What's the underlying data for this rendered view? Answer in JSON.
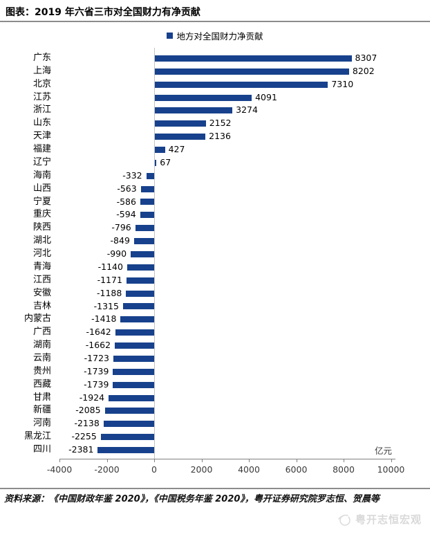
{
  "title": "图表：2019 年六省三市对全国财力有净贡献",
  "legend": {
    "label": "地方对全国财力净贡献",
    "color": "#17418C"
  },
  "chart_data": {
    "type": "bar",
    "orientation": "horizontal",
    "title": "图表：2019 年六省三市对全国财力有净贡献",
    "legend_entries": [
      "地方对全国财力净贡献"
    ],
    "legend_position": "top-center",
    "unit_label": "亿元",
    "bar_color": "#17418C",
    "grid": false,
    "xlim": [
      -4000,
      10000
    ],
    "x_ticks": [
      -4000,
      -2000,
      0,
      2000,
      4000,
      6000,
      8000,
      10000
    ],
    "categories": [
      "广东",
      "上海",
      "北京",
      "江苏",
      "浙江",
      "山东",
      "天津",
      "福建",
      "辽宁",
      "海南",
      "山西",
      "宁夏",
      "重庆",
      "陕西",
      "湖北",
      "河北",
      "青海",
      "江西",
      "安徽",
      "吉林",
      "内蒙古",
      "广西",
      "湖南",
      "云南",
      "贵州",
      "西藏",
      "甘肃",
      "新疆",
      "河南",
      "黑龙江",
      "四川"
    ],
    "values": [
      8307,
      8202,
      7310,
      4091,
      3274,
      2152,
      2136,
      427,
      67,
      -332,
      -563,
      -586,
      -594,
      -796,
      -849,
      -990,
      -1140,
      -1171,
      -1188,
      -1315,
      -1418,
      -1642,
      -1662,
      -1723,
      -1739,
      -1739,
      -1924,
      -2085,
      -2138,
      -2255,
      -2381
    ]
  },
  "footer": {
    "source": "资料来源：《中国财政年鉴 2020》，《中国税务年鉴 2020》，粤开证券研究院罗志恒、贺晨等",
    "watermark": "粤开志恒宏观"
  }
}
